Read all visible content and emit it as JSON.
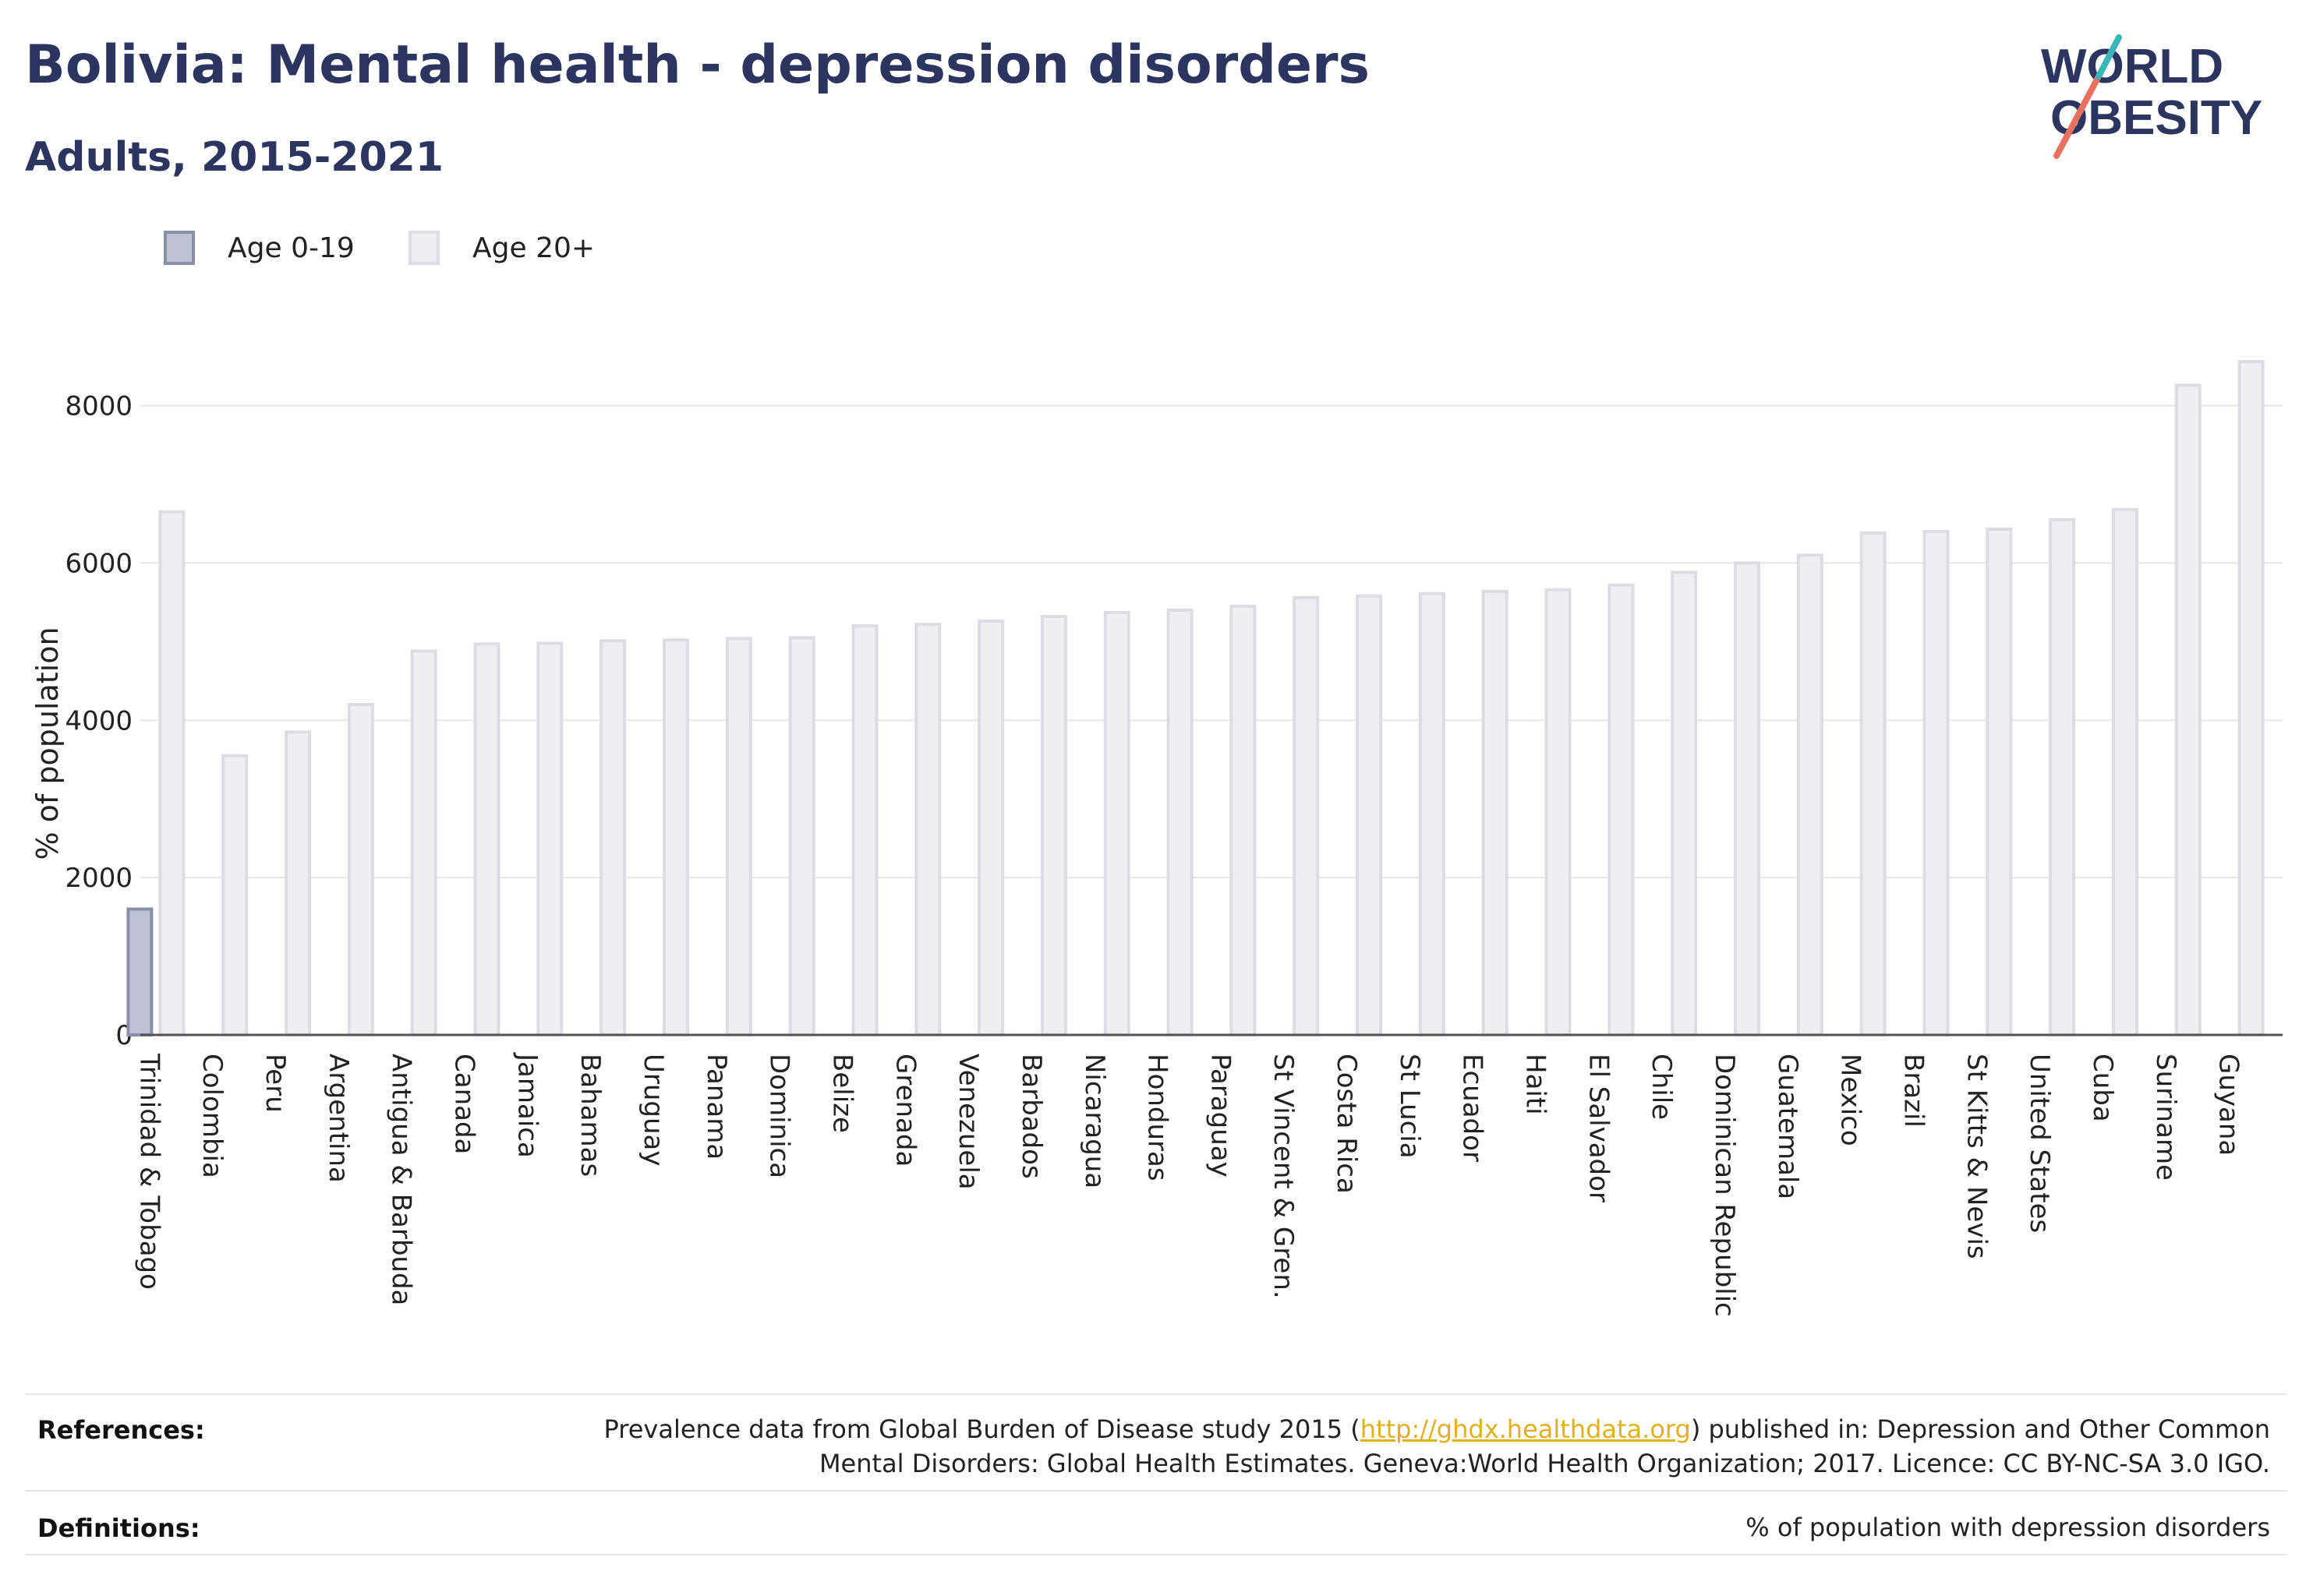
{
  "header": {
    "title": "Bolivia: Mental health - depression disorders",
    "subtitle": "Adults, 2015-2021"
  },
  "logo": {
    "line1": "WORLD",
    "line2": "OBESITY",
    "colors": {
      "text": "#2b3560",
      "slash_red": "#e8705f",
      "slash_teal": "#3ab5b8"
    }
  },
  "legend": [
    {
      "label": "Age 0-19",
      "fill": "#bfc2d4",
      "stroke": "#8a8fa8"
    },
    {
      "label": "Age 20+",
      "fill": "#eeeef3",
      "stroke": "#dcdce4"
    }
  ],
  "chart_data": {
    "type": "bar",
    "ylabel": "% of population",
    "xlabel": "",
    "ylim": [
      0,
      8600
    ],
    "yticks": [
      0,
      2000,
      4000,
      6000,
      8000
    ],
    "grid": true,
    "legend_position": "top-left",
    "categories": [
      "Trinidad & Tobago",
      "Colombia",
      "Peru",
      "Argentina",
      "Antigua & Barbuda",
      "Canada",
      "Jamaica",
      "Bahamas",
      "Uruguay",
      "Panama",
      "Dominica",
      "Belize",
      "Grenada",
      "Venezuela",
      "Barbados",
      "Nicaragua",
      "Honduras",
      "Paraguay",
      "St Vincent & Gren.",
      "Costa Rica",
      "St Lucia",
      "Ecuador",
      "Haiti",
      "El Salvador",
      "Chile",
      "Dominican Republic",
      "Guatemala",
      "Mexico",
      "Brazil",
      "St Kitts & Nevis",
      "United States",
      "Cuba",
      "Suriname",
      "Guyana"
    ],
    "series": [
      {
        "name": "Age 0-19",
        "color": "#bfc2d4",
        "stroke": "#8a8fa8",
        "values": [
          1600,
          null,
          null,
          null,
          null,
          null,
          null,
          null,
          null,
          null,
          null,
          null,
          null,
          null,
          null,
          null,
          null,
          null,
          null,
          null,
          null,
          null,
          null,
          null,
          null,
          null,
          null,
          null,
          null,
          null,
          null,
          null,
          null,
          null
        ]
      },
      {
        "name": "Age 20+",
        "color": "#eeeef3",
        "stroke": "#dcdce4",
        "values": [
          6650,
          3550,
          3850,
          4200,
          4880,
          4970,
          4980,
          5010,
          5020,
          5040,
          5050,
          5200,
          5220,
          5260,
          5320,
          5370,
          5400,
          5450,
          5560,
          5580,
          5610,
          5640,
          5660,
          5720,
          5880,
          6000,
          6100,
          6380,
          6400,
          6430,
          6550,
          6680,
          8260,
          8560
        ]
      }
    ]
  },
  "references": {
    "heading": "References:",
    "line1_before": "Prevalence data from Global Burden of Disease study 2015 (",
    "link": "http://ghdx.healthdata.org",
    "line1_after": ") published in: Depression and Other Common",
    "line2": "Mental Disorders: Global Health Estimates. Geneva:World Health Organization; 2017. Licence: CC BY-NC-SA 3.0 IGO."
  },
  "definitions": {
    "heading": "Definitions:",
    "text": "% of population with depression disorders"
  }
}
